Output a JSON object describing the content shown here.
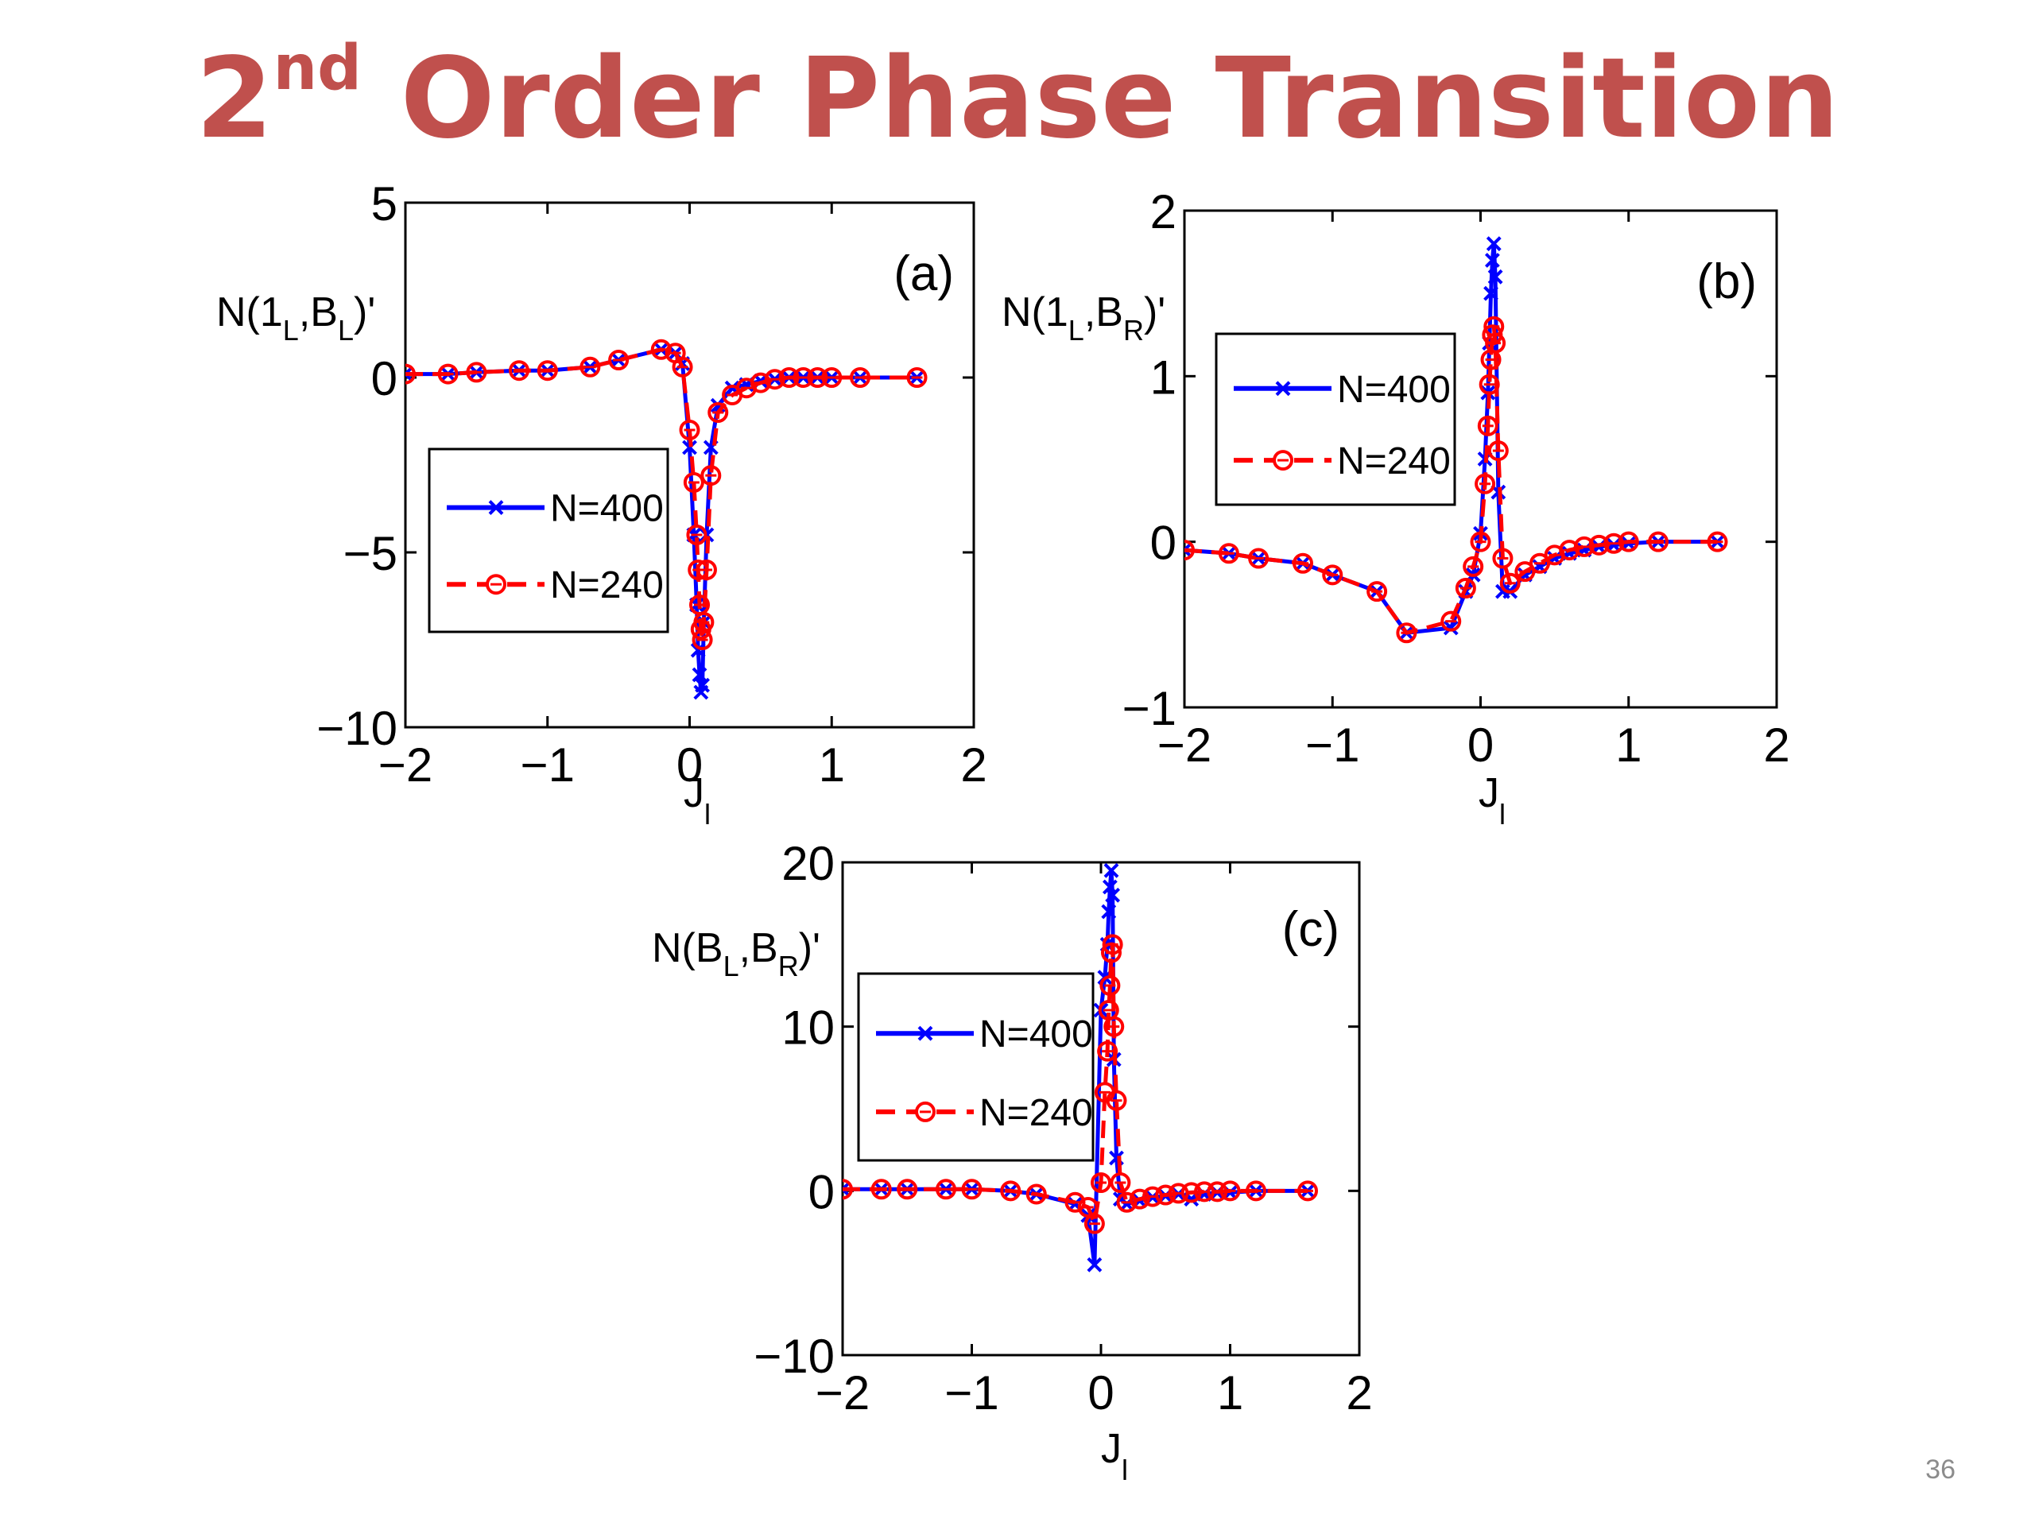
{
  "slide": {
    "title_main": "2",
    "title_sup": "nd",
    "title_rest": " Order Phase Transition",
    "title_color": "#c0504d",
    "page_number": "36"
  },
  "chart_data": [
    {
      "type": "line",
      "panel": "(a)",
      "ylabel": {
        "main": "N(1",
        "sub1": "L",
        "mid": ",B",
        "sub2": "L",
        "end": ")'"
      },
      "xlabel": {
        "main": "J",
        "sub": "l"
      },
      "xlim": [
        -2,
        2
      ],
      "ylim": [
        -10,
        5
      ],
      "xticks": [
        -2,
        -1,
        0,
        1,
        2
      ],
      "yticks": [
        -10,
        -5,
        0,
        5
      ],
      "legend_position": "left-middle",
      "series": [
        {
          "name": "N=400",
          "color": "#0000ff",
          "marker": "x",
          "dash": "solid",
          "x": [
            -2.0,
            -1.7,
            -1.5,
            -1.2,
            -1.0,
            -0.7,
            -0.5,
            -0.2,
            -0.1,
            -0.05,
            0.0,
            0.03,
            0.05,
            0.06,
            0.07,
            0.08,
            0.09,
            0.1,
            0.12,
            0.15,
            0.2,
            0.3,
            0.4,
            0.5,
            0.6,
            0.7,
            0.8,
            0.9,
            1.0,
            1.2,
            1.6
          ],
          "y": [
            0.1,
            0.1,
            0.15,
            0.2,
            0.2,
            0.3,
            0.5,
            0.8,
            0.7,
            0.4,
            -2.0,
            -4.5,
            -6.5,
            -7.8,
            -8.5,
            -9.0,
            -8.8,
            -7.0,
            -4.5,
            -2.0,
            -0.8,
            -0.3,
            -0.2,
            -0.1,
            -0.05,
            0.0,
            0.0,
            0.0,
            0.0,
            0.0,
            0.0
          ]
        },
        {
          "name": "N=240",
          "color": "#ff0000",
          "marker": "o",
          "dash": "dashed",
          "x": [
            -2.0,
            -1.7,
            -1.5,
            -1.2,
            -1.0,
            -0.7,
            -0.5,
            -0.2,
            -0.1,
            -0.05,
            0.0,
            0.03,
            0.05,
            0.06,
            0.07,
            0.08,
            0.09,
            0.1,
            0.12,
            0.15,
            0.2,
            0.3,
            0.4,
            0.5,
            0.6,
            0.7,
            0.8,
            0.9,
            1.0,
            1.2,
            1.6
          ],
          "y": [
            0.1,
            0.1,
            0.15,
            0.2,
            0.2,
            0.3,
            0.5,
            0.8,
            0.7,
            0.3,
            -1.5,
            -3.0,
            -4.5,
            -5.5,
            -6.5,
            -7.2,
            -7.5,
            -7.0,
            -5.5,
            -2.8,
            -1.0,
            -0.5,
            -0.3,
            -0.15,
            -0.05,
            0.0,
            0.0,
            0.0,
            0.0,
            0.0,
            0.0
          ]
        }
      ]
    },
    {
      "type": "line",
      "panel": "(b)",
      "ylabel": {
        "main": "N(1",
        "sub1": "L",
        "mid": ",B",
        "sub2": "R",
        "end": ")'"
      },
      "xlabel": {
        "main": "J",
        "sub": "l"
      },
      "xlim": [
        -2,
        2
      ],
      "ylim": [
        -1,
        2
      ],
      "xticks": [
        -2,
        -1,
        0,
        1,
        2
      ],
      "yticks": [
        -1,
        0,
        1,
        2
      ],
      "legend_position": "top-left",
      "series": [
        {
          "name": "N=400",
          "color": "#0000ff",
          "marker": "x",
          "dash": "solid",
          "x": [
            -2.0,
            -1.7,
            -1.5,
            -1.2,
            -1.0,
            -0.7,
            -0.5,
            -0.2,
            -0.1,
            -0.05,
            0.0,
            0.03,
            0.05,
            0.06,
            0.07,
            0.08,
            0.09,
            0.1,
            0.12,
            0.15,
            0.2,
            0.3,
            0.4,
            0.5,
            0.6,
            0.7,
            0.8,
            0.9,
            1.0,
            1.2,
            1.6
          ],
          "y": [
            -0.05,
            -0.07,
            -0.1,
            -0.13,
            -0.2,
            -0.3,
            -0.55,
            -0.52,
            -0.3,
            -0.2,
            0.05,
            0.5,
            0.9,
            1.2,
            1.5,
            1.7,
            1.8,
            1.6,
            0.3,
            -0.3,
            -0.3,
            -0.2,
            -0.15,
            -0.1,
            -0.07,
            -0.05,
            -0.03,
            -0.02,
            -0.01,
            0.0,
            0.0
          ]
        },
        {
          "name": "N=240",
          "color": "#ff0000",
          "marker": "o",
          "dash": "dashed",
          "x": [
            -2.0,
            -1.7,
            -1.5,
            -1.2,
            -1.0,
            -0.7,
            -0.5,
            -0.2,
            -0.1,
            -0.05,
            0.0,
            0.03,
            0.05,
            0.06,
            0.07,
            0.08,
            0.09,
            0.1,
            0.12,
            0.15,
            0.2,
            0.3,
            0.4,
            0.5,
            0.6,
            0.7,
            0.8,
            0.9,
            1.0,
            1.2,
            1.6
          ],
          "y": [
            -0.05,
            -0.07,
            -0.1,
            -0.13,
            -0.2,
            -0.3,
            -0.55,
            -0.48,
            -0.28,
            -0.15,
            0.0,
            0.35,
            0.7,
            0.95,
            1.1,
            1.25,
            1.3,
            1.2,
            0.55,
            -0.1,
            -0.25,
            -0.18,
            -0.13,
            -0.08,
            -0.05,
            -0.03,
            -0.02,
            -0.01,
            0.0,
            0.0,
            0.0
          ]
        }
      ]
    },
    {
      "type": "line",
      "panel": "(c)",
      "ylabel": {
        "main": "N(B",
        "sub1": "L",
        "mid": ",B",
        "sub2": "R",
        "end": ")'"
      },
      "xlabel": {
        "main": "J",
        "sub": "l"
      },
      "xlim": [
        -2,
        2
      ],
      "ylim": [
        -10,
        20
      ],
      "xticks": [
        -2,
        -1,
        0,
        1,
        2
      ],
      "yticks": [
        -10,
        0,
        10,
        20
      ],
      "legend_position": "top-left",
      "series": [
        {
          "name": "N=400",
          "color": "#0000ff",
          "marker": "x",
          "dash": "solid",
          "x": [
            -2.0,
            -1.7,
            -1.5,
            -1.2,
            -1.0,
            -0.7,
            -0.5,
            -0.2,
            -0.1,
            -0.05,
            0.0,
            0.03,
            0.05,
            0.06,
            0.07,
            0.08,
            0.09,
            0.1,
            0.12,
            0.15,
            0.2,
            0.3,
            0.4,
            0.5,
            0.6,
            0.7,
            0.8,
            0.9,
            1.0,
            1.2,
            1.6
          ],
          "y": [
            0.1,
            0.1,
            0.1,
            0.1,
            0.1,
            0.0,
            -0.2,
            -0.8,
            -1.5,
            -4.5,
            11.0,
            13.0,
            15.0,
            17.0,
            18.5,
            19.5,
            18.0,
            8.0,
            2.0,
            -0.5,
            -0.8,
            -0.6,
            -0.4,
            -0.3,
            -0.2,
            -0.5,
            -0.2,
            -0.1,
            -0.1,
            0.0,
            0.0
          ]
        },
        {
          "name": "N=240",
          "color": "#ff0000",
          "marker": "o",
          "dash": "dashed",
          "x": [
            -2.0,
            -1.7,
            -1.5,
            -1.2,
            -1.0,
            -0.7,
            -0.5,
            -0.2,
            -0.1,
            -0.05,
            0.0,
            0.03,
            0.05,
            0.06,
            0.07,
            0.08,
            0.09,
            0.1,
            0.12,
            0.15,
            0.2,
            0.3,
            0.4,
            0.5,
            0.6,
            0.7,
            0.8,
            0.9,
            1.0,
            1.2,
            1.6
          ],
          "y": [
            0.1,
            0.1,
            0.1,
            0.1,
            0.1,
            0.0,
            -0.2,
            -0.7,
            -1.0,
            -2.0,
            0.5,
            6.0,
            8.5,
            11.0,
            12.5,
            14.5,
            15.0,
            10.0,
            5.5,
            0.5,
            -0.7,
            -0.5,
            -0.35,
            -0.25,
            -0.15,
            -0.1,
            -0.05,
            -0.05,
            0.0,
            0.0,
            0.0
          ]
        }
      ]
    }
  ]
}
